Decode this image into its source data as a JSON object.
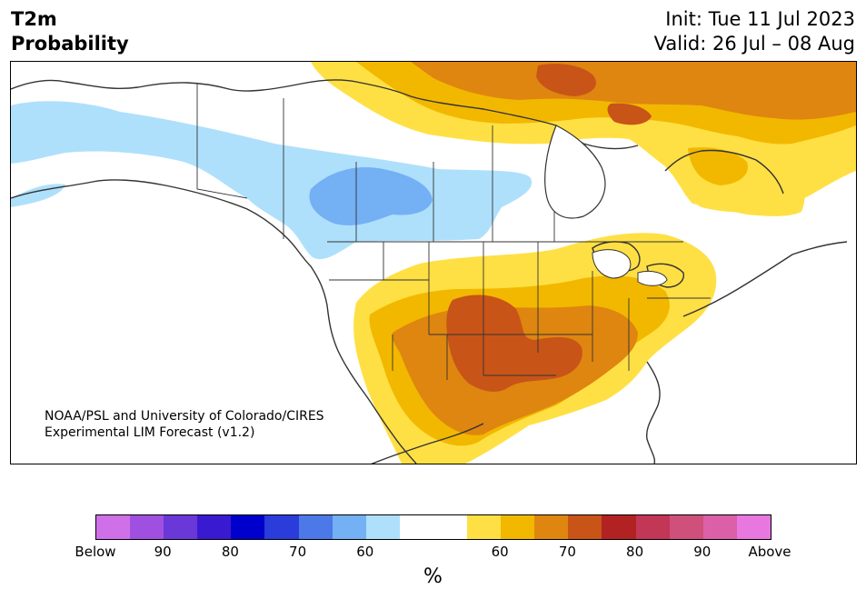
{
  "header": {
    "title_line1": "T2m",
    "title_line2": "Probability",
    "init": "Init: Tue 11 Jul 2023",
    "valid": "Valid: 26 Jul – 08 Aug"
  },
  "map": {
    "credit_line1": "NOAA/PSL and University of Colorado/CIRES",
    "credit_line2": "Experimental LIM Forecast (v1.2)",
    "regions": [
      {
        "name": "cool-pacific-nw-canada",
        "category": "below-50-60"
      },
      {
        "name": "cool-prairies-core",
        "category": "below-60-70"
      },
      {
        "name": "warm-southern-plains-core",
        "category": "above-70-80"
      },
      {
        "name": "warm-southern-us",
        "category": "above-60-70"
      },
      {
        "name": "warm-eastern-us",
        "category": "above-50-60"
      },
      {
        "name": "warm-arctic-canada",
        "category": "above-60-70"
      },
      {
        "name": "warm-quebec",
        "category": "above-50-60"
      }
    ]
  },
  "colorbar": {
    "colors": [
      "#d070e8",
      "#a050e0",
      "#6a38d8",
      "#3a1ad0",
      "#0000cc",
      "#2a3cda",
      "#4c78e8",
      "#74b0f4",
      "#aee0fc",
      "#ffffff",
      "#ffffff",
      "#ffe044",
      "#f2b800",
      "#de8610",
      "#c85418",
      "#b22222",
      "#c23656",
      "#d0507c",
      "#dc60a8",
      "#e878e0"
    ],
    "tick_labels": [
      "Below",
      "90",
      "80",
      "70",
      "60",
      "60",
      "70",
      "80",
      "90",
      "Above"
    ],
    "units": "%"
  }
}
